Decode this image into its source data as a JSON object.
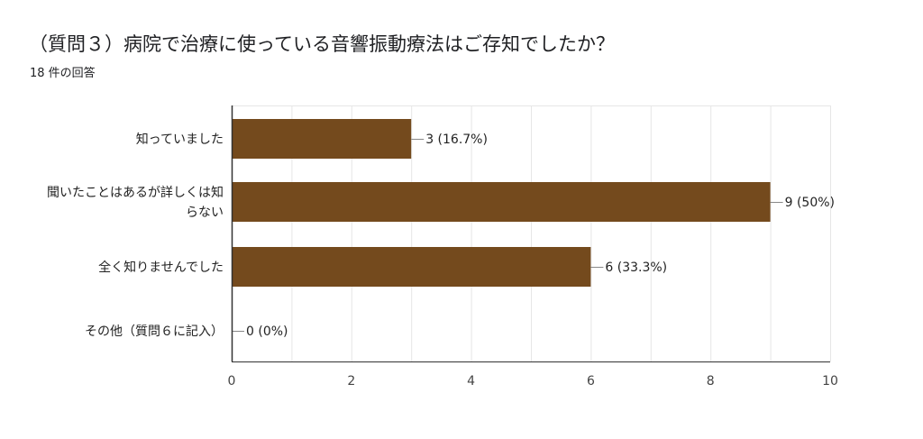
{
  "title": "（質問３）病院で治療に使っている音響振動療法はご存知でしたか？",
  "subtitle": "18 件の回答",
  "colors": {
    "bar": "#744a1d",
    "grid": "#e6e6e6",
    "axis": "#333333"
  },
  "chart_data": {
    "type": "bar",
    "orientation": "horizontal",
    "categories": [
      [
        "知っていました"
      ],
      [
        "聞いたことはあるが詳しくは知",
        "らない"
      ],
      [
        "全く知りませんでした"
      ],
      [
        "その他（質問６に記入）"
      ]
    ],
    "values": [
      3,
      9,
      6,
      0
    ],
    "data_labels": [
      "3 (16.7%)",
      "9 (50%)",
      "6 (33.3%)",
      "0 (0%)"
    ],
    "xlim": [
      0,
      10
    ],
    "xticks": [
      0,
      2,
      4,
      6,
      8,
      10
    ],
    "xtick_labels": [
      "0",
      "2",
      "4",
      "6",
      "8",
      "10"
    ],
    "grid": true
  }
}
